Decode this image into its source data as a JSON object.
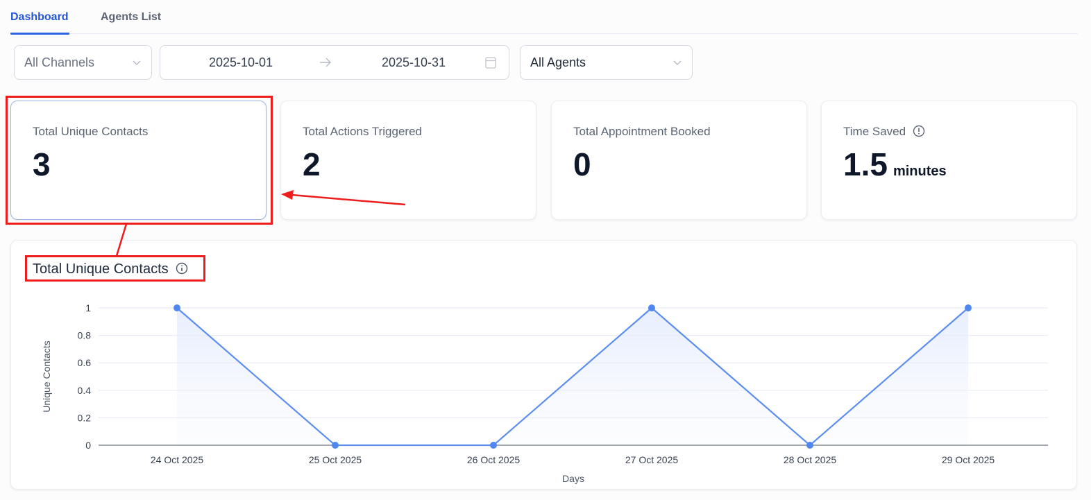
{
  "tabs": [
    {
      "label": "Dashboard",
      "active": true
    },
    {
      "label": "Agents List",
      "active": false
    }
  ],
  "filters": {
    "channel": {
      "value": "All Channels",
      "icon": "chevron-down-icon"
    },
    "date_range": {
      "start": "2025-10-01",
      "end": "2025-10-31",
      "separator_icon": "arrow-right-icon",
      "icon": "calendar-icon"
    },
    "agent": {
      "value": "All Agents",
      "icon": "chevron-down-icon"
    }
  },
  "stats": [
    {
      "label": "Total Unique Contacts",
      "value": "3",
      "selected": true
    },
    {
      "label": "Total Actions Triggered",
      "value": "2"
    },
    {
      "label": "Total Appointment Booked",
      "value": "0"
    },
    {
      "label": "Time Saved",
      "value": "1.5",
      "unit": "minutes",
      "icon": "alert-circle-icon"
    }
  ],
  "chart_panel": {
    "title": "Total Unique Contacts",
    "icon": "info-icon"
  },
  "colors": {
    "accent": "#2f63e6",
    "line": "#5b8ef0",
    "annotation": "#ee1c1c"
  },
  "chart_data": {
    "type": "area",
    "title": "Total Unique Contacts",
    "xlabel": "Days",
    "ylabel": "Unique Contacts",
    "categories": [
      "24 Oct 2025",
      "25 Oct 2025",
      "26 Oct 2025",
      "27 Oct 2025",
      "28 Oct 2025",
      "29 Oct 2025"
    ],
    "series": [
      {
        "name": "Unique Contacts",
        "values": [
          1,
          0,
          0,
          1,
          0,
          1
        ]
      }
    ],
    "yticks": [
      "0",
      "0.2",
      "0.4",
      "0.6",
      "0.8",
      "1"
    ],
    "ylim": [
      0,
      1
    ],
    "grid": true,
    "legend": false
  }
}
